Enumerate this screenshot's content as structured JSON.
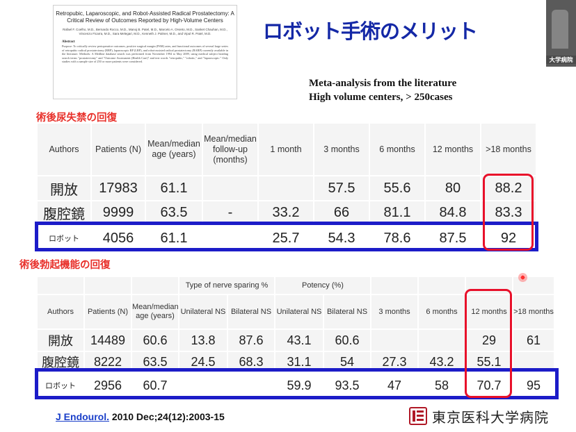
{
  "paper": {
    "title": "Retropubic, Laparoscopic, and Robot-Assisted Radical Prostatectomy: A Critical Review of Outcomes Reported by High-Volume Centers",
    "authors": "Rafael F. Coelho, M.D., Bernardo Rocco, M.D., Manoj B. Patel, M.D., Marcelo A. Orvieto, M.D., Sanket Chauhan, M.D., Vincenzo Ficarra, M.D., Sara Melegari, M.D., Kenneth J. Palmer, M.D., and Vipul R. Patel, M.D.",
    "abstract_heading": "Abstract",
    "abstract_text": "Purpose: To critically review perioperative outcomes, positive surgical margin (PSM) rates, and functional outcomes of several large series of retropubic radical prostatectomy (RRP), laparoscopic RP (LRP), and robot-assisted radical prostatectomy (RARP) currently available in the literature. Methods: A Medline database search was performed from November 1994 to May 2009, using medical subject heading search terms \"prostatectomy\" and \"Outcome Assessment (Health Care)\" and text words \"retropubic,\" \"robotic,\" and \"laparoscopic.\" Only studies with a sample size of 250 or more patients were considered."
  },
  "title": "ロボット手術のメリット",
  "webcam_label": "大学病院",
  "meta_lines": [
    "Meta-analysis from the literature",
    "High volume centers,  > 250cases"
  ],
  "section1": "術後尿失禁の回復",
  "section2": "術後勃起機能の回復",
  "table1": {
    "headers": [
      "Authors",
      "Patients (N)",
      "Mean/median age (years)",
      "Mean/median follow-up (months)",
      "1 month",
      "3 months",
      "6 months",
      "12 months",
      ">18 months"
    ],
    "rows": [
      {
        "cells": [
          "開放",
          "17983",
          "61.1",
          "",
          "",
          "57.5",
          "55.6",
          "80",
          "88.2"
        ]
      },
      {
        "cells": [
          "腹腔鏡",
          "9999",
          "63.5",
          "-",
          "33.2",
          "66",
          "81.1",
          "84.8",
          "83.3"
        ]
      },
      {
        "cells": [
          "ロボット",
          "4056",
          "61.1",
          "",
          "25.7",
          "54.3",
          "78.6",
          "87.5",
          "92"
        ]
      }
    ]
  },
  "table2": {
    "group_headers": {
      "nerve_sparing": "Type of nerve sparing %",
      "potency": "Potency (%)"
    },
    "headers": [
      "Authors",
      "Patients (N)",
      "Mean/median age (years)",
      "Unilateral NS",
      "Bilateral NS",
      "Unilateral NS",
      "Bilateral NS",
      "3 months",
      "6 months",
      "12 months",
      ">18 months"
    ],
    "rows": [
      {
        "cells": [
          "開放",
          "14489",
          "60.6",
          "13.8",
          "87.6",
          "43.1",
          "60.6",
          "",
          "",
          "29",
          "61"
        ]
      },
      {
        "cells": [
          "腹腔鏡",
          "8222",
          "63.5",
          "24.5",
          "68.3",
          "31.1",
          "54",
          "27.3",
          "43.2",
          "55.1",
          ""
        ]
      },
      {
        "cells": [
          "ロボット",
          "2956",
          "60.7",
          "",
          "",
          "59.9",
          "93.5",
          "47",
          "58",
          "70.7",
          "95"
        ]
      }
    ]
  },
  "reference": {
    "journal": "J Endourol.",
    "citation": " 2010 Dec;24(12):2003-15"
  },
  "hospital": {
    "name": "東京医科大学病院"
  },
  "colors": {
    "title": "#1428a6",
    "section": "#e8302a",
    "blue_box": "#1c1cc8",
    "red_box": "#e8102a",
    "table_bg": "#f4f4f4"
  }
}
